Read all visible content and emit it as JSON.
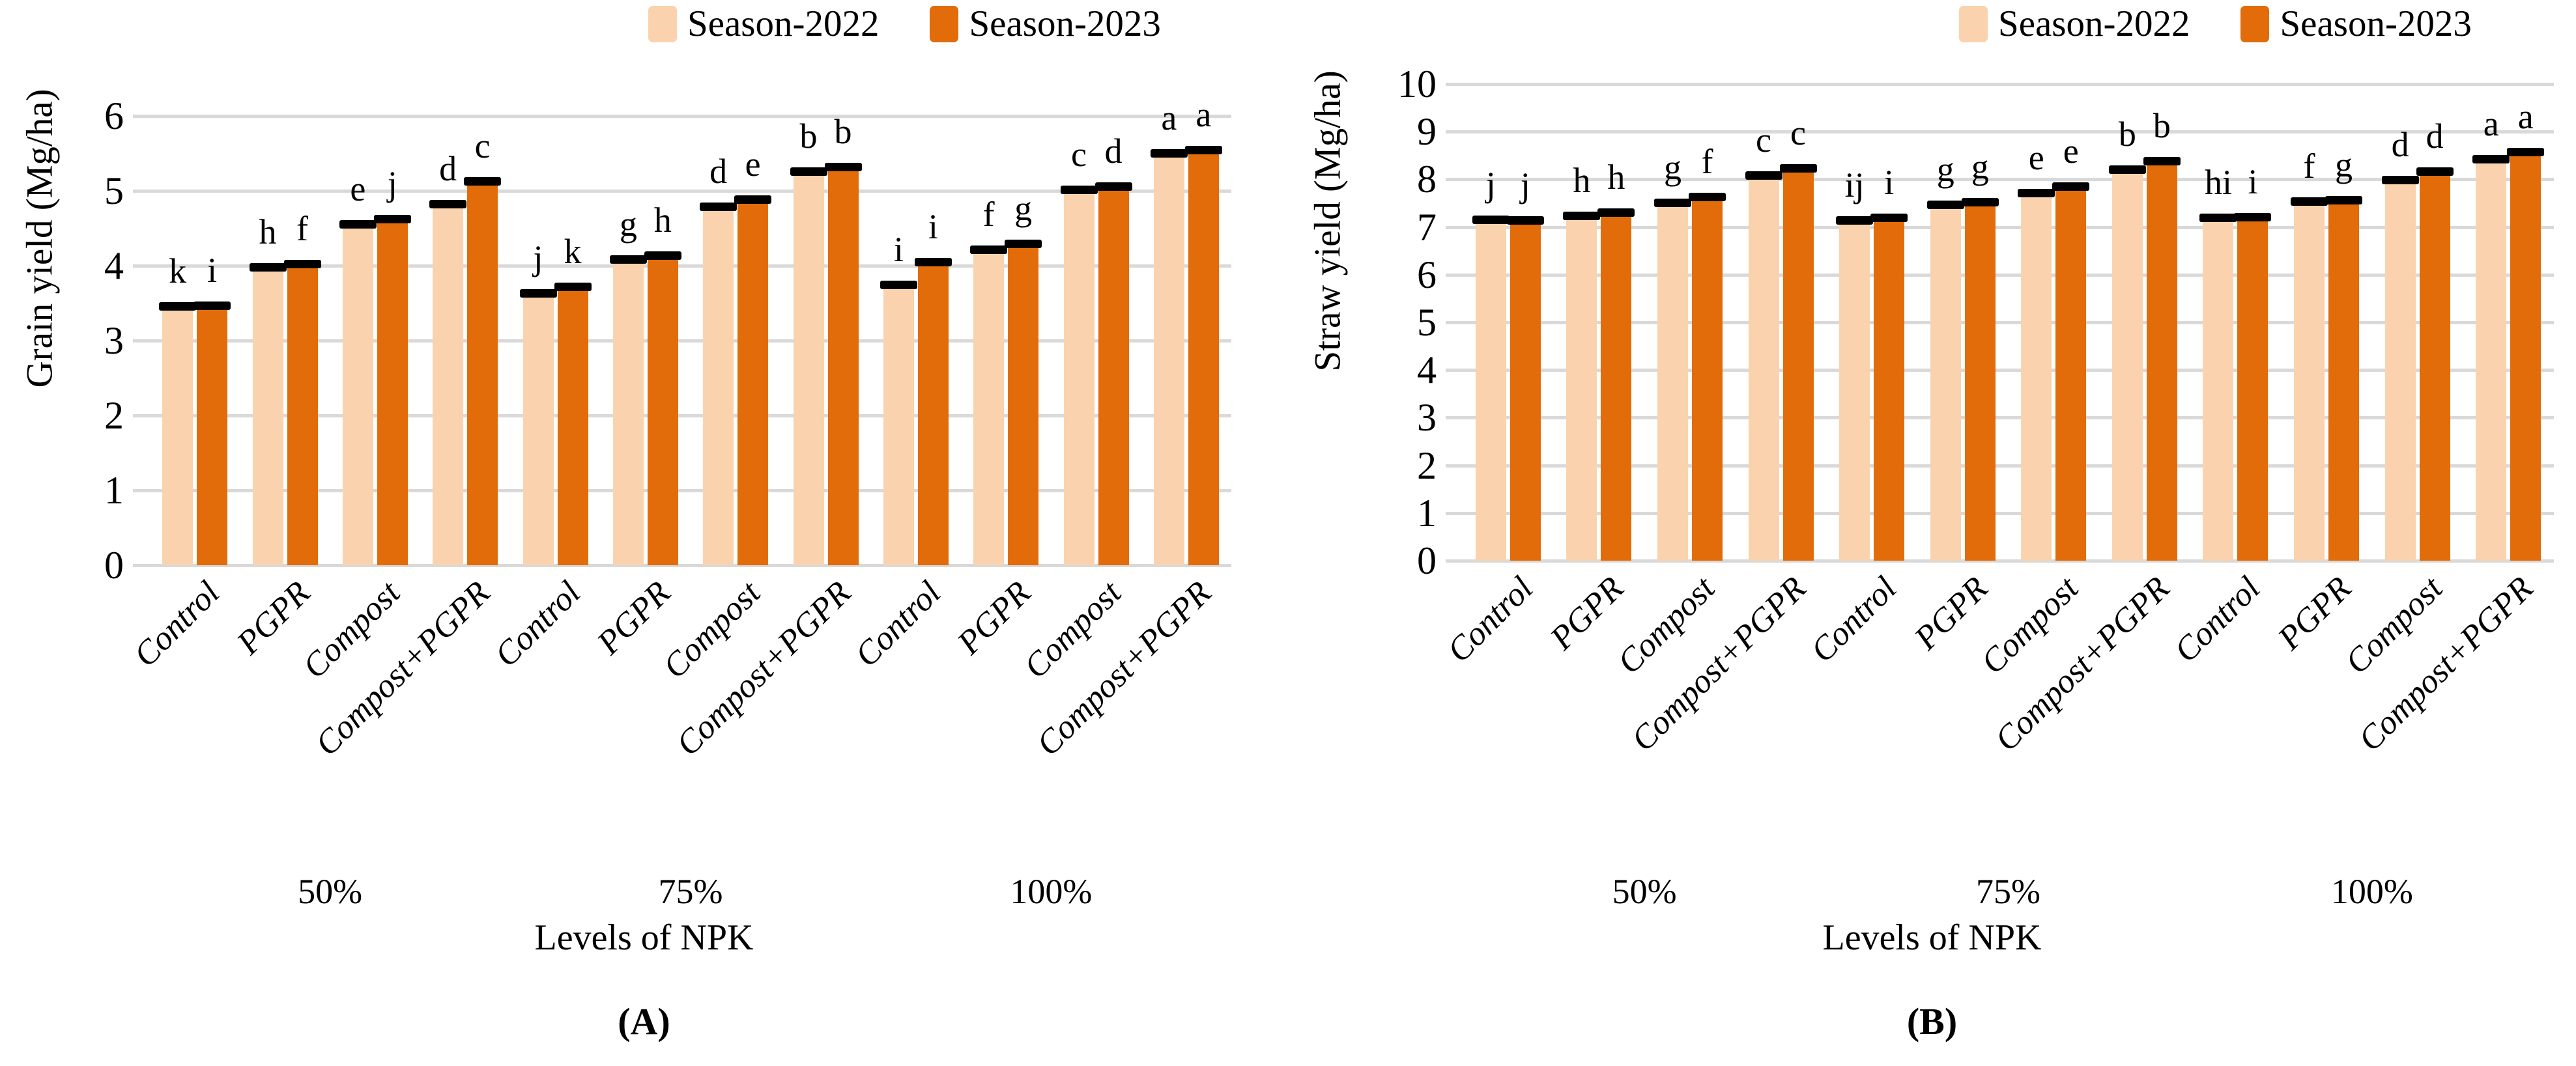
{
  "figure": {
    "type": "two-panel grouped bar chart",
    "background": "#ffffff",
    "gridline_color": "#d9d9d9",
    "error_cap_color": "#000000"
  },
  "chart_data": [
    {
      "type": "bar",
      "panel": "A",
      "caption": "(A)",
      "ylabel": "Grain yield (Mg/ha)",
      "xlabel": "Levels of NPK",
      "ylim": [
        0,
        6
      ],
      "ytick_step": 1,
      "grid": true,
      "legend_position": "top",
      "error_caps": true,
      "groups": [
        "50%",
        "75%",
        "100%"
      ],
      "categories": [
        "Control",
        "PGPR",
        "Compost",
        "Compost+PGPR",
        "Control",
        "PGPR",
        "Compost",
        "Compost+PGPR",
        "Control",
        "PGPR",
        "Compost",
        "Compost+PGPR"
      ],
      "series": [
        {
          "name": "Season-2022",
          "color": "#FAD3AE",
          "values": [
            3.45,
            3.97,
            4.55,
            4.82,
            3.63,
            4.08,
            4.78,
            5.25,
            3.74,
            4.21,
            5.01,
            5.5
          ],
          "letters": [
            "k",
            "h",
            "e",
            "d",
            "j",
            "g",
            "d",
            "b",
            "i",
            "f",
            "c",
            "a"
          ]
        },
        {
          "name": "Season-2023",
          "color": "#E26C09",
          "values": [
            3.46,
            4.02,
            4.62,
            5.12,
            3.71,
            4.13,
            4.88,
            5.31,
            4.04,
            4.29,
            5.05,
            5.54
          ],
          "letters": [
            "i",
            "f",
            "j",
            "c",
            "k",
            "h",
            "e",
            "b",
            "i",
            "g",
            "d",
            "a"
          ]
        }
      ]
    },
    {
      "type": "bar",
      "panel": "B",
      "caption": "(B)",
      "ylabel": "Straw yield (Mg/ha)",
      "xlabel": "Levels of NPK",
      "ylim": [
        0,
        10
      ],
      "ytick_step": 1,
      "grid": true,
      "legend_position": "top",
      "error_caps": true,
      "groups": [
        "50%",
        "75%",
        "100%"
      ],
      "categories": [
        "Control",
        "PGPR",
        "Compost",
        "Compost+PGPR",
        "Control",
        "PGPR",
        "Compost",
        "Compost+PGPR",
        "Control",
        "PGPR",
        "Compost",
        "Compost+PGPR"
      ],
      "series": [
        {
          "name": "Season-2022",
          "color": "#FAD3AE",
          "values": [
            7.15,
            7.22,
            7.5,
            8.07,
            7.13,
            7.46,
            7.71,
            8.2,
            7.18,
            7.53,
            7.98,
            8.42
          ],
          "letters": [
            "j",
            "h",
            "g",
            "c",
            "ij",
            "g",
            "e",
            "b",
            "hi",
            "f",
            "d",
            "a"
          ]
        },
        {
          "name": "Season-2023",
          "color": "#E26C09",
          "values": [
            7.13,
            7.3,
            7.62,
            8.22,
            7.18,
            7.52,
            7.84,
            8.38,
            7.2,
            7.56,
            8.15,
            8.57
          ],
          "letters": [
            "j",
            "h",
            "f",
            "c",
            "i",
            "g",
            "e",
            "b",
            "i",
            "g",
            "d",
            "a"
          ]
        }
      ]
    }
  ]
}
